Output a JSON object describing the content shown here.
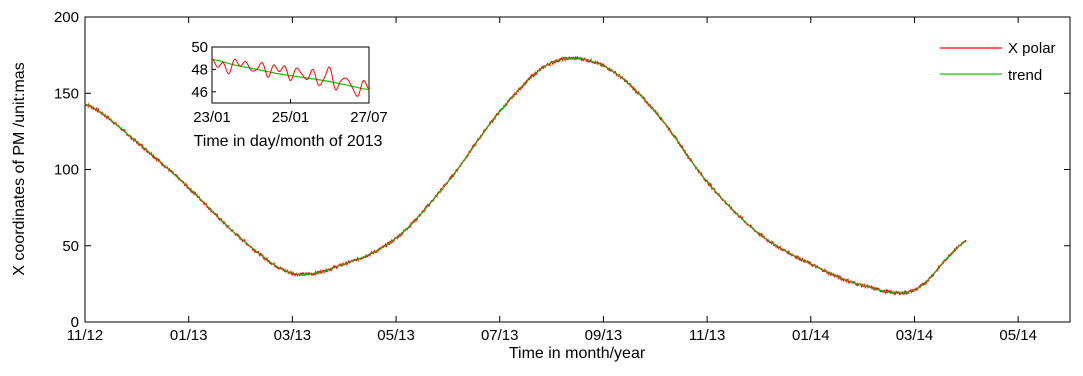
{
  "chart_data": [
    {
      "type": "line",
      "title": "",
      "xlabel": "Time in month/year",
      "ylabel": "X coordinates of PM /unit:mas",
      "x_ticks": [
        "11/12",
        "01/13",
        "03/13",
        "05/13",
        "07/13",
        "09/13",
        "11/13",
        "01/14",
        "03/14",
        "05/14"
      ],
      "x_range": [
        "11/12",
        "06/14"
      ],
      "y_ticks": [
        0,
        50,
        100,
        150,
        200
      ],
      "ylim": [
        0,
        200
      ],
      "grid": false,
      "legend_position": "top-right",
      "colors": {
        "x_polar": "#ff0000",
        "trend": "#00cc00"
      },
      "series": [
        {
          "name": "X polar",
          "x": [
            "11/12",
            "12/12",
            "01/13",
            "02/13",
            "03/13",
            "04/13",
            "05/13",
            "06/13",
            "07/13",
            "08/13",
            "09/13",
            "10/13",
            "11/13",
            "12/13",
            "01/14",
            "02/14",
            "03/14",
            "04/14"
          ],
          "values": [
            143,
            118,
            88,
            55,
            32,
            38,
            55,
            92,
            138,
            170,
            168,
            138,
            92,
            58,
            38,
            24,
            21,
            53
          ]
        },
        {
          "name": "trend",
          "x": [
            "11/12",
            "12/12",
            "01/13",
            "02/13",
            "03/13",
            "04/13",
            "05/13",
            "06/13",
            "07/13",
            "08/13",
            "09/13",
            "10/13",
            "11/13",
            "12/13",
            "01/14",
            "02/14",
            "03/14",
            "04/14"
          ],
          "values": [
            143,
            118,
            88,
            55,
            32,
            38,
            55,
            92,
            138,
            170,
            168,
            138,
            92,
            58,
            38,
            24,
            21,
            53
          ]
        }
      ]
    },
    {
      "type": "line",
      "title": "",
      "xlabel": "Time in day/month of 2013",
      "ylabel": "",
      "x_ticks": [
        "23/01",
        "25/01",
        "27/07"
      ],
      "y_ticks": [
        46,
        48,
        50
      ],
      "ylim": [
        45,
        50
      ],
      "series": [
        {
          "name": "X polar",
          "x": [
            0,
            0.25,
            0.5,
            0.75,
            1,
            1.25,
            1.5,
            1.75,
            2,
            2.25,
            2.5,
            2.75,
            3,
            3.25,
            3.5,
            3.75,
            4,
            4.25,
            4.5,
            4.75,
            5,
            5.25,
            5.5,
            5.75,
            6,
            6.25,
            6.5,
            6.75,
            7
          ],
          "values": [
            49.0,
            48.2,
            48.6,
            47.6,
            48.9,
            48.3,
            48.7,
            47.9,
            48.0,
            48.6,
            47.3,
            48.4,
            47.8,
            48.3,
            47.0,
            48.1,
            47.6,
            47.1,
            48.0,
            46.6,
            47.2,
            48.2,
            46.2,
            47.0,
            47.2,
            46.4,
            45.6,
            47.0,
            46.2
          ]
        },
        {
          "name": "trend",
          "x": [
            0,
            1,
            2,
            3,
            4,
            5,
            6,
            7
          ],
          "values": [
            48.9,
            48.4,
            48.0,
            47.6,
            47.3,
            47.0,
            46.6,
            46.2
          ]
        }
      ]
    }
  ]
}
